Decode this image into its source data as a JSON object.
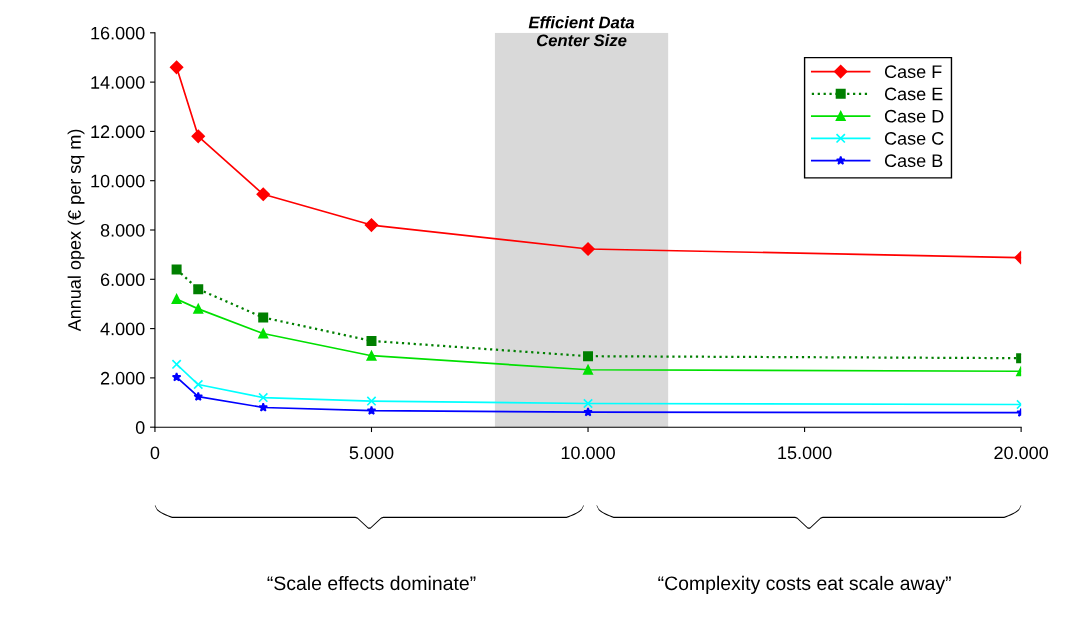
{
  "chart_data": {
    "type": "line",
    "ylabel": "Annual opex (€ per sq m)",
    "x": [
      500,
      1000,
      2500,
      5000,
      10000,
      20000
    ],
    "xlim": [
      0,
      20000
    ],
    "ylim": [
      0,
      16000
    ],
    "xticks": [
      0,
      {
        "value": 5000,
        "label": "5.000"
      },
      {
        "value": 10000,
        "label": "10.000"
      },
      {
        "value": 15000,
        "label": "15.000"
      },
      {
        "value": 20000,
        "label": "20.000"
      }
    ],
    "yticks": [
      0,
      {
        "value": 2000,
        "label": "2.000"
      },
      {
        "value": 4000,
        "label": "4.000"
      },
      {
        "value": 6000,
        "label": "6.000"
      },
      {
        "value": 8000,
        "label": "8.000"
      },
      {
        "value": 10000,
        "label": "10.000"
      },
      {
        "value": 12000,
        "label": "12.000"
      },
      {
        "value": 14000,
        "label": "14.000"
      },
      {
        "value": 16000,
        "label": "16.000"
      }
    ],
    "series": [
      {
        "name": "Case F",
        "color": "#ff0000",
        "marker": "diamond",
        "line_style": "solid",
        "values": [
          14600,
          11800,
          9450,
          8200,
          7230,
          6880
        ]
      },
      {
        "name": "Case E",
        "color": "#007f00",
        "marker": "square",
        "line_style": "dotted",
        "values": [
          6400,
          5600,
          4450,
          3500,
          2880,
          2800
        ]
      },
      {
        "name": "Case D",
        "color": "#00e000",
        "marker": "triangle",
        "line_style": "solid",
        "values": [
          5200,
          4800,
          3800,
          2900,
          2330,
          2270
        ]
      },
      {
        "name": "Case C",
        "color": "#00ffff",
        "marker": "cross",
        "line_style": "solid",
        "values": [
          2550,
          1730,
          1200,
          1060,
          960,
          920
        ]
      },
      {
        "name": "Case B",
        "color": "#0000ff",
        "marker": "star",
        "line_style": "solid",
        "values": [
          2030,
          1240,
          800,
          670,
          610,
          590
        ]
      }
    ],
    "bands": [
      {
        "axis": "x",
        "from": 7850,
        "to": 11850,
        "label": "Efficient Data\nCenter Size",
        "color": "#d9d9d9"
      }
    ],
    "annotations": [
      "“Scale effects dominate”",
      "“Complexity costs eat scale away”"
    ],
    "legend": "top right",
    "grid": false
  }
}
